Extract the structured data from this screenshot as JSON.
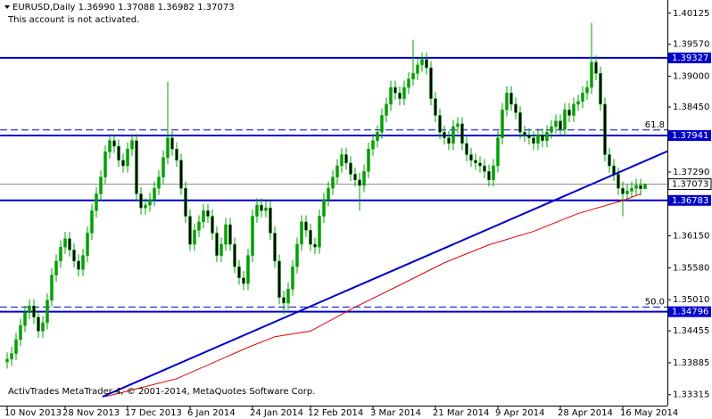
{
  "chart_data": {
    "type": "candlestick",
    "title": "EURUSD,Daily 1.36990 1.37088 1.36982 1.37073",
    "subtitle": "This account is not activated.",
    "footer": "ActivTrades MetaTrader 4, © 2001-2014, MetaQuotes Software Corp.",
    "categories": [
      "10 Nov 2013",
      null,
      null,
      null,
      null,
      null,
      null,
      null,
      null,
      null,
      null,
      null,
      null,
      "28 Nov 2013",
      null,
      null,
      null,
      null,
      null,
      null,
      null,
      null,
      null,
      null,
      null,
      null,
      null,
      "17 Dec 2013",
      null,
      null,
      null,
      null,
      null,
      null,
      null,
      null,
      null,
      null,
      null,
      null,
      null,
      "6 Jan 2014",
      null,
      null,
      null,
      null,
      null,
      null,
      null,
      null,
      null,
      null,
      null,
      null,
      null,
      "24 Jan 2014",
      null,
      null,
      null,
      null,
      null,
      null,
      null,
      null,
      null,
      null,
      null,
      null,
      "12 Feb 2014",
      null,
      null,
      null,
      null,
      null,
      null,
      null,
      null,
      null,
      null,
      null,
      null,
      null,
      "3 Mar 2014",
      null,
      null,
      null,
      null,
      null,
      null,
      null,
      null,
      null,
      null,
      null,
      null,
      null,
      "21 Mar 2014",
      null,
      null,
      null,
      null,
      null,
      null,
      null,
      null,
      null,
      null,
      null,
      null,
      null,
      "9 Apr 2014",
      null,
      null,
      null,
      null,
      null,
      null,
      null,
      null,
      null,
      null,
      null,
      null,
      null,
      "28 Apr 2014",
      null,
      null,
      null,
      null,
      null,
      null,
      null,
      null,
      null,
      null,
      null,
      null,
      null,
      "16 May 2014",
      null,
      null,
      null,
      null,
      null
    ],
    "open": [
      1.339,
      1.3395,
      1.3405,
      1.343,
      1.3455,
      1.3478,
      1.349,
      1.347,
      1.3445,
      1.346,
      1.35,
      1.3545,
      1.357,
      1.3595,
      1.361,
      1.359,
      1.357,
      1.3555,
      1.358,
      1.362,
      1.366,
      1.369,
      1.372,
      1.3765,
      1.3785,
      1.3775,
      1.375,
      1.374,
      1.377,
      1.3785,
      1.369,
      1.3665,
      1.367,
      1.368,
      1.37,
      1.372,
      1.3755,
      1.379,
      1.377,
      1.375,
      1.37,
      1.365,
      1.36,
      1.3625,
      1.364,
      1.366,
      1.365,
      1.362,
      1.358,
      1.36,
      1.3635,
      1.36,
      1.356,
      1.354,
      1.353,
      1.358,
      1.365,
      1.367,
      1.366,
      1.3665,
      1.362,
      1.357,
      1.3505,
      1.3495,
      1.352,
      1.356,
      1.36,
      1.364,
      1.3625,
      1.36,
      1.3595,
      1.365,
      1.368,
      1.37,
      1.372,
      1.374,
      1.376,
      1.3745,
      1.3725,
      1.3715,
      1.3705,
      1.373,
      1.377,
      1.3785,
      1.38,
      1.383,
      1.385,
      1.388,
      1.387,
      1.386,
      1.388,
      1.3895,
      1.3905,
      1.392,
      1.393,
      1.3915,
      1.386,
      1.383,
      1.38,
      1.379,
      1.378,
      1.381,
      1.3815,
      1.378,
      1.376,
      1.375,
      1.3745,
      1.374,
      1.373,
      1.3715,
      1.374,
      1.379,
      1.384,
      1.387,
      1.385,
      1.3835,
      1.38,
      1.3795,
      1.379,
      1.378,
      1.3795,
      1.3785,
      1.38,
      1.381,
      1.382,
      1.3805,
      1.384,
      1.383,
      1.385,
      1.3855,
      1.387,
      1.388,
      1.3925,
      1.3905,
      1.385,
      1.376,
      1.374,
      1.3725,
      1.37,
      1.369,
      1.3695,
      1.37,
      1.3705,
      1.3699
    ],
    "high": [
      1.3407,
      1.3417,
      1.3442,
      1.3467,
      1.349,
      1.3502,
      1.3502,
      1.3482,
      1.3472,
      1.3512,
      1.3557,
      1.3582,
      1.3607,
      1.3622,
      1.3622,
      1.3602,
      1.3582,
      1.3592,
      1.3632,
      1.3672,
      1.3702,
      1.3732,
      1.3777,
      1.3797,
      1.3797,
      1.3787,
      1.3762,
      1.3782,
      1.3797,
      1.3797,
      1.3702,
      1.3682,
      1.3692,
      1.3712,
      1.3732,
      1.3767,
      1.389,
      1.3802,
      1.3782,
      1.3762,
      1.3712,
      1.3662,
      1.3637,
      1.3652,
      1.3672,
      1.3672,
      1.3662,
      1.3632,
      1.3612,
      1.3647,
      1.3647,
      1.3612,
      1.3572,
      1.3552,
      1.3592,
      1.3662,
      1.3682,
      1.3682,
      1.3677,
      1.3677,
      1.3632,
      1.3582,
      1.3517,
      1.3532,
      1.3572,
      1.3612,
      1.3652,
      1.3652,
      1.3637,
      1.3612,
      1.3662,
      1.3692,
      1.3712,
      1.3732,
      1.3752,
      1.3772,
      1.3772,
      1.3757,
      1.3737,
      1.3727,
      1.3742,
      1.3782,
      1.3797,
      1.3812,
      1.3842,
      1.3862,
      1.3892,
      1.3892,
      1.3882,
      1.3892,
      1.3907,
      1.3965,
      1.3932,
      1.3942,
      1.3942,
      1.3927,
      1.3872,
      1.3842,
      1.3812,
      1.3802,
      1.3822,
      1.3827,
      1.3827,
      1.3792,
      1.3772,
      1.3762,
      1.3757,
      1.3752,
      1.3742,
      1.3752,
      1.3802,
      1.3852,
      1.3882,
      1.3882,
      1.3862,
      1.3847,
      1.3812,
      1.3807,
      1.3802,
      1.3807,
      1.3807,
      1.3812,
      1.3822,
      1.3832,
      1.3832,
      1.3852,
      1.3852,
      1.3862,
      1.3867,
      1.3882,
      1.3892,
      1.3995,
      1.3937,
      1.3917,
      1.3862,
      1.3772,
      1.3752,
      1.3737,
      1.3712,
      1.3707,
      1.3712,
      1.3717,
      1.3717,
      1.37088
    ],
    "low": [
      1.3378,
      1.3383,
      1.3393,
      1.3418,
      1.3443,
      1.3466,
      1.3458,
      1.3433,
      1.3433,
      1.3448,
      1.3488,
      1.3533,
      1.3558,
      1.3583,
      1.3578,
      1.3558,
      1.3543,
      1.3543,
      1.3568,
      1.3608,
      1.3648,
      1.3678,
      1.3708,
      1.3753,
      1.3763,
      1.3738,
      1.3728,
      1.3728,
      1.3758,
      1.3678,
      1.3653,
      1.3653,
      1.3658,
      1.3668,
      1.3688,
      1.3708,
      1.3743,
      1.3758,
      1.3738,
      1.3688,
      1.3638,
      1.3588,
      1.3588,
      1.3613,
      1.3628,
      1.3638,
      1.3608,
      1.3568,
      1.3568,
      1.3588,
      1.3588,
      1.3548,
      1.3528,
      1.3518,
      1.3518,
      1.3568,
      1.3638,
      1.3648,
      1.3648,
      1.3608,
      1.3558,
      1.3493,
      1.3475,
      1.3483,
      1.3508,
      1.3548,
      1.3588,
      1.3613,
      1.3588,
      1.3583,
      1.3583,
      1.3638,
      1.3668,
      1.3688,
      1.3708,
      1.3728,
      1.3733,
      1.3713,
      1.3703,
      1.366,
      1.3693,
      1.3718,
      1.3758,
      1.3773,
      1.3788,
      1.3818,
      1.3838,
      1.3858,
      1.3848,
      1.3848,
      1.3868,
      1.3883,
      1.3893,
      1.3908,
      1.3903,
      1.3848,
      1.3818,
      1.3788,
      1.3778,
      1.3768,
      1.3768,
      1.3798,
      1.3768,
      1.3748,
      1.3738,
      1.3733,
      1.3728,
      1.3718,
      1.3703,
      1.3703,
      1.3728,
      1.3778,
      1.3828,
      1.3838,
      1.3823,
      1.3788,
      1.3783,
      1.3778,
      1.3768,
      1.3768,
      1.3773,
      1.3773,
      1.3788,
      1.3798,
      1.3793,
      1.3793,
      1.3818,
      1.3818,
      1.3838,
      1.3843,
      1.3858,
      1.3868,
      1.3893,
      1.3838,
      1.3748,
      1.3728,
      1.3713,
      1.3688,
      1.365,
      1.3678,
      1.3683,
      1.3688,
      1.3687,
      1.36982
    ],
    "close": [
      1.3395,
      1.3405,
      1.343,
      1.3455,
      1.3478,
      1.349,
      1.347,
      1.3445,
      1.346,
      1.35,
      1.3545,
      1.357,
      1.3595,
      1.361,
      1.359,
      1.357,
      1.3555,
      1.358,
      1.362,
      1.366,
      1.369,
      1.372,
      1.3765,
      1.3785,
      1.3775,
      1.375,
      1.374,
      1.377,
      1.3785,
      1.369,
      1.3665,
      1.367,
      1.368,
      1.37,
      1.372,
      1.3755,
      1.379,
      1.377,
      1.375,
      1.37,
      1.365,
      1.36,
      1.3625,
      1.364,
      1.366,
      1.365,
      1.362,
      1.358,
      1.36,
      1.3635,
      1.36,
      1.356,
      1.354,
      1.353,
      1.358,
      1.365,
      1.367,
      1.366,
      1.3665,
      1.362,
      1.357,
      1.3505,
      1.3495,
      1.352,
      1.356,
      1.36,
      1.364,
      1.3625,
      1.36,
      1.3595,
      1.365,
      1.368,
      1.37,
      1.372,
      1.374,
      1.376,
      1.3745,
      1.3725,
      1.3715,
      1.3705,
      1.373,
      1.377,
      1.3785,
      1.38,
      1.383,
      1.385,
      1.388,
      1.387,
      1.386,
      1.388,
      1.3895,
      1.3905,
      1.392,
      1.393,
      1.3915,
      1.386,
      1.383,
      1.38,
      1.379,
      1.378,
      1.381,
      1.3815,
      1.378,
      1.376,
      1.375,
      1.3745,
      1.374,
      1.373,
      1.3715,
      1.374,
      1.379,
      1.384,
      1.387,
      1.385,
      1.3835,
      1.38,
      1.3795,
      1.379,
      1.378,
      1.3795,
      1.3785,
      1.38,
      1.381,
      1.382,
      1.3805,
      1.384,
      1.383,
      1.385,
      1.3855,
      1.387,
      1.388,
      1.3925,
      1.3905,
      1.385,
      1.376,
      1.374,
      1.3725,
      1.37,
      1.369,
      1.3695,
      1.37,
      1.3705,
      1.3699,
      1.37073
    ],
    "up_color": "#00a000",
    "down_color": "#000000",
    "wick_color": "#00a000",
    "ma": {
      "x": [
        22,
        38,
        54,
        60,
        68,
        78,
        88,
        98,
        108,
        118,
        128,
        138,
        142
      ],
      "values": [
        1.3328,
        1.336,
        1.3416,
        1.3435,
        1.3445,
        1.3488,
        1.3527,
        1.3567,
        1.3599,
        1.3623,
        1.3655,
        1.3678,
        1.369
      ],
      "color": "#e00000"
    },
    "trendline": {
      "x": [
        21.4,
        148
      ],
      "values": [
        1.3328,
        1.3766
      ],
      "color": "#0000cc"
    },
    "hlines": [
      1.39327,
      1.37941,
      1.36783,
      1.34796
    ],
    "hline_color": "#0000cc",
    "fib_levels": [
      {
        "value": 1.3804,
        "label": "61.8"
      },
      {
        "value": 1.3488,
        "label": "50.0"
      }
    ],
    "current_price": 1.37073,
    "ylim": [
      1.3312,
      1.4036
    ],
    "yticks": [
      {
        "value": 1.40125,
        "label": "1.40125"
      },
      {
        "value": 1.3957,
        "label": "1.39570"
      },
      {
        "value": 1.39,
        "label": "1.39000"
      },
      {
        "value": 1.3845,
        "label": "1.38450"
      },
      {
        "value": 1.3729,
        "label": "1.37290"
      },
      {
        "value": 1.3615,
        "label": "1.36150"
      },
      {
        "value": 1.3558,
        "label": "1.35580"
      },
      {
        "value": 1.3501,
        "label": "1.35010"
      },
      {
        "value": 1.34455,
        "label": "1.34455"
      },
      {
        "value": 1.33885,
        "label": "1.33885"
      },
      {
        "value": 1.33315,
        "label": "1.33315"
      }
    ]
  }
}
